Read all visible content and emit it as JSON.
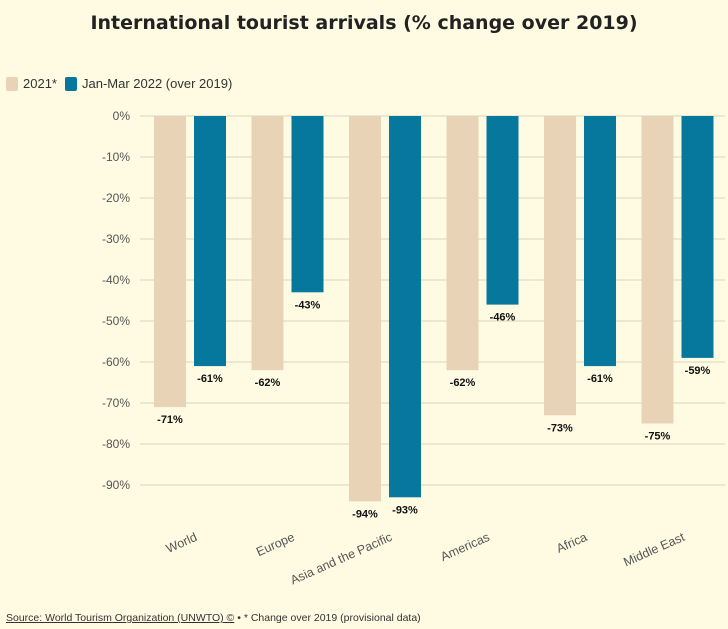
{
  "title": "International tourist arrivals (% change over 2019)",
  "footer": {
    "source_link": "Source: World Tourism Organization (UNWTO) ©",
    "note": " • * Change over 2019 (provisional data)"
  },
  "colors": {
    "series_2021": "#e8d3b6",
    "series_2022": "#06789e",
    "grid": "#d9d4bf",
    "tick": "#555555"
  },
  "chart_data": {
    "type": "bar",
    "title": "International tourist arrivals (% change over 2019)",
    "xlabel": "",
    "ylabel": "",
    "ylim": [
      -100,
      0
    ],
    "yticks": [
      0,
      -10,
      -20,
      -30,
      -40,
      -50,
      -60,
      -70,
      -80,
      -90
    ],
    "ytick_labels": [
      "0%",
      "-10%",
      "-20%",
      "-30%",
      "-40%",
      "-50%",
      "-60%",
      "-70%",
      "-80%",
      "-90%"
    ],
    "categories": [
      "World",
      "Europe",
      "Asia and the Pacific",
      "Americas",
      "Africa",
      "Middle East"
    ],
    "legend_position": "top-left",
    "grid": true,
    "series": [
      {
        "name": "2021*",
        "values": [
          -71,
          -62,
          -94,
          -62,
          -73,
          -75
        ],
        "labels": [
          "-71%",
          "-62%",
          "-94%",
          "-62%",
          "-73%",
          "-75%"
        ]
      },
      {
        "name": "Jan-Mar 2022 (over 2019)",
        "values": [
          -61,
          -43,
          -93,
          -46,
          -61,
          -59
        ],
        "labels": [
          "-61%",
          "-43%",
          "-93%",
          "-46%",
          "-61%",
          "-59%"
        ]
      }
    ]
  }
}
